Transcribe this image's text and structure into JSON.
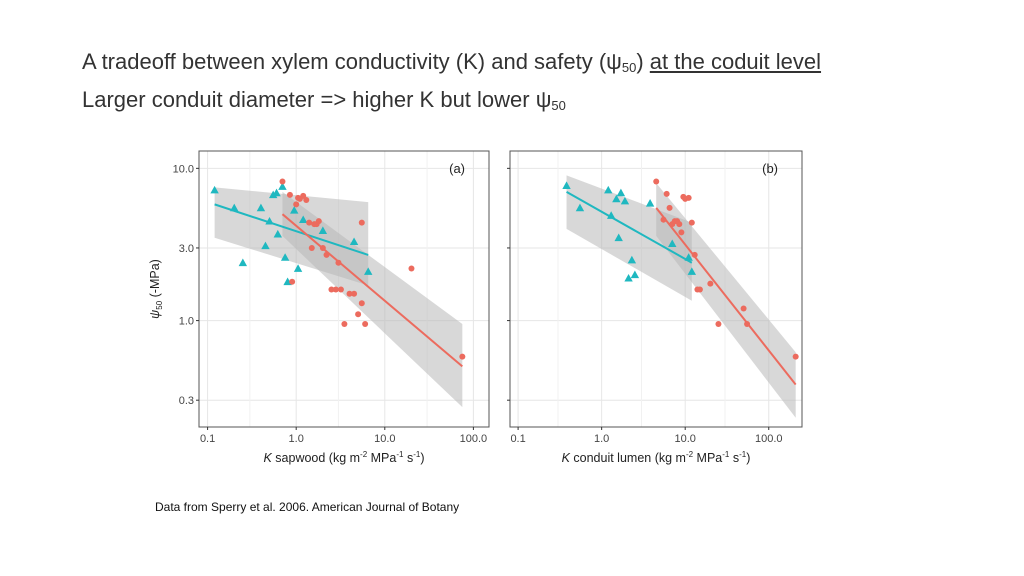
{
  "slide": {
    "title_line1_a": "A tradeoff between xylem conductivity (K) and safety (ψ",
    "title_line1_sub": "50",
    "title_line1_b": ") ",
    "title_line1_underlined": "at the coduit level",
    "title_line2_a": "Larger conduit diameter => higher K but lower ψ",
    "title_line2_sub": "50",
    "source": "Data from Sperry et al. 2006. American Journal of Botany"
  },
  "colors": {
    "teal": "#1fb8c0",
    "salmon": "#ec6b5e",
    "band": "#b8b8b8",
    "grid": "#e6e6e6"
  },
  "chart_data": [
    {
      "type": "scatter",
      "panel_label": "(a)",
      "xlabel": "K sapwood (kg m-2 MPa-1 s-1)",
      "ylabel": "ψ50 (-MPa)",
      "xscale": "log",
      "yscale": "log",
      "xlim": [
        0.08,
        150
      ],
      "ylim": [
        0.2,
        13
      ],
      "xticks": [
        0.1,
        1.0,
        10.0,
        100.0
      ],
      "xtick_labels": [
        "0.1",
        "1.0",
        "10.0",
        "100.0"
      ],
      "yticks": [
        0.3,
        1.0,
        3.0,
        10.0
      ],
      "ytick_labels": [
        "0.3",
        "1.0",
        "3.0",
        "10.0"
      ],
      "grid": true,
      "series": [
        {
          "marker": "triangle",
          "color": "#1fb8c0",
          "x": [
            0.12,
            0.2,
            0.25,
            0.4,
            0.45,
            0.5,
            0.55,
            0.6,
            0.62,
            0.7,
            0.75,
            0.8,
            0.95,
            1.05,
            1.2,
            2.0,
            4.5,
            6.5
          ],
          "y": [
            7.2,
            5.5,
            2.4,
            5.5,
            3.1,
            4.5,
            6.7,
            6.9,
            3.7,
            7.6,
            2.6,
            1.8,
            5.3,
            2.2,
            4.6,
            3.9,
            3.3,
            2.1
          ],
          "fit": {
            "x": [
              0.12,
              6.5
            ],
            "y": [
              5.8,
              2.7
            ]
          },
          "ci_upper": [
            7.5,
            6.0
          ],
          "ci_lower": [
            3.5,
            1.7
          ]
        },
        {
          "marker": "circle",
          "color": "#ec6b5e",
          "x": [
            0.7,
            0.85,
            0.9,
            1.0,
            1.05,
            1.1,
            1.2,
            1.3,
            1.4,
            1.5,
            1.6,
            1.7,
            1.8,
            2.0,
            2.2,
            2.5,
            2.8,
            3.0,
            3.2,
            3.5,
            4.0,
            4.5,
            5.0,
            5.5,
            5.5,
            6.0,
            20.0,
            75.0
          ],
          "y": [
            8.2,
            6.7,
            1.8,
            5.8,
            6.4,
            6.3,
            6.6,
            6.2,
            4.4,
            3.0,
            4.3,
            4.3,
            4.5,
            3.0,
            2.7,
            1.6,
            1.6,
            2.4,
            1.6,
            0.95,
            1.5,
            1.5,
            1.1,
            4.4,
            1.3,
            0.95,
            2.2,
            0.58
          ],
          "fit": {
            "x": [
              0.7,
              75.0
            ],
            "y": [
              5.0,
              0.5
            ]
          },
          "ci_upper": [
            7.0,
            0.95
          ],
          "ci_lower": [
            3.6,
            0.27
          ]
        }
      ]
    },
    {
      "type": "scatter",
      "panel_label": "(b)",
      "xlabel": "K conduit lumen (kg m-2 MPa-1 s-1)",
      "ylabel": "",
      "xscale": "log",
      "yscale": "log",
      "xlim": [
        0.08,
        250
      ],
      "ylim": [
        0.2,
        13
      ],
      "xticks": [
        0.1,
        1.0,
        10.0,
        100.0
      ],
      "xtick_labels": [
        "0.1",
        "1.0",
        "10.0",
        "100.0"
      ],
      "yticks": [
        0.3,
        1.0,
        3.0,
        10.0
      ],
      "ytick_labels": [
        "",
        "",
        "",
        ""
      ],
      "grid": true,
      "series": [
        {
          "marker": "triangle",
          "color": "#1fb8c0",
          "x": [
            0.38,
            0.55,
            1.2,
            1.3,
            1.5,
            1.6,
            1.7,
            1.9,
            2.1,
            2.3,
            2.5,
            3.8,
            7.0,
            11.0,
            12.0
          ],
          "y": [
            7.7,
            5.5,
            7.2,
            4.9,
            6.3,
            3.5,
            6.9,
            6.1,
            1.9,
            2.5,
            2.0,
            5.9,
            3.2,
            2.6,
            2.1
          ],
          "fit": {
            "x": [
              0.38,
              12.0
            ],
            "y": [
              7.0,
              2.4
            ]
          },
          "ci_upper": [
            9.0,
            4.4
          ],
          "ci_lower": [
            4.0,
            1.35
          ]
        },
        {
          "marker": "circle",
          "color": "#ec6b5e",
          "x": [
            4.5,
            5.5,
            6.0,
            6.5,
            7.0,
            7.5,
            8.0,
            8.5,
            9.0,
            9.5,
            10.0,
            11.0,
            12.0,
            13.0,
            14.0,
            15.0,
            20.0,
            25.0,
            50.0,
            55.0,
            210.0
          ],
          "y": [
            8.2,
            4.6,
            6.8,
            5.5,
            4.3,
            4.5,
            4.5,
            4.3,
            3.8,
            6.5,
            6.3,
            6.4,
            4.4,
            2.7,
            1.6,
            1.6,
            1.75,
            0.95,
            1.2,
            0.95,
            0.58
          ],
          "fit": {
            "x": [
              4.5,
              210.0
            ],
            "y": [
              5.5,
              0.38
            ]
          },
          "ci_upper": [
            8.0,
            0.62
          ],
          "ci_lower": [
            3.6,
            0.23
          ]
        }
      ]
    }
  ]
}
